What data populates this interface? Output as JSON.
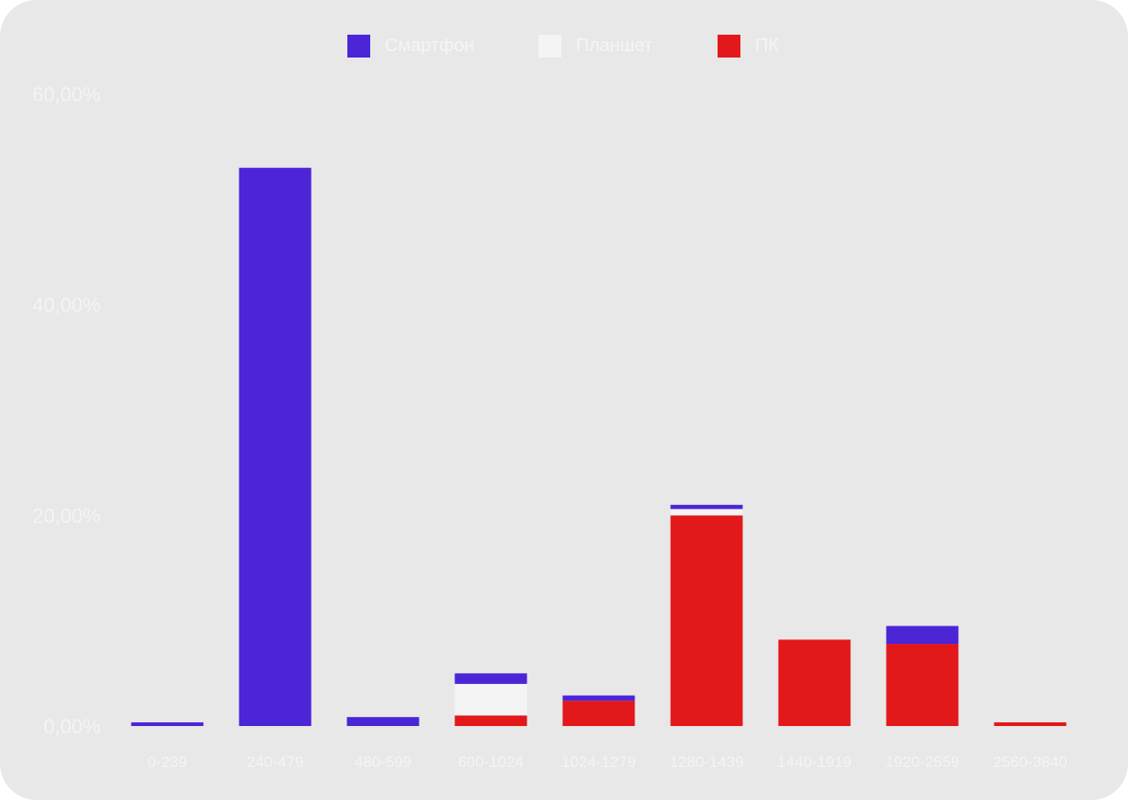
{
  "colors": {
    "smartphone": "#4b25d6",
    "tablet": "#f4f4f4",
    "pc": "#e2181a",
    "background": "#e8e8e8"
  },
  "legend": [
    {
      "label": "Смартфон",
      "color": "#4b25d6"
    },
    {
      "label": "Планшет",
      "color": "#f4f4f4"
    },
    {
      "label": "ПК",
      "color": "#e2181a"
    }
  ],
  "chart_data": {
    "type": "bar",
    "stacked": true,
    "categories": [
      "0-239",
      "240-479",
      "480-599",
      "600-1024",
      "1024-1279",
      "1280-1439",
      "1440-1919",
      "1920-2559",
      "2560-3840"
    ],
    "series": [
      {
        "name": "ПК",
        "color": "#e2181a",
        "values": [
          0,
          0,
          0,
          1.0,
          2.4,
          20.0,
          8.2,
          7.8,
          0.35
        ]
      },
      {
        "name": "Планшет",
        "color": "#f4f4f4",
        "values": [
          0,
          0,
          0,
          3.0,
          0,
          0.6,
          0,
          0,
          0
        ]
      },
      {
        "name": "Смартфон",
        "color": "#4b25d6",
        "values": [
          0.35,
          53.0,
          0.85,
          1.0,
          0.5,
          0.4,
          0,
          1.7,
          0
        ]
      }
    ],
    "yticks": [
      "0,00%",
      "20,00%",
      "40,00%",
      "60,00%"
    ],
    "ytick_values": [
      0,
      20,
      40,
      60
    ],
    "ylim": [
      0,
      60
    ],
    "xlabel": "",
    "ylabel": "",
    "grid": false,
    "legend_position": "top-center"
  }
}
